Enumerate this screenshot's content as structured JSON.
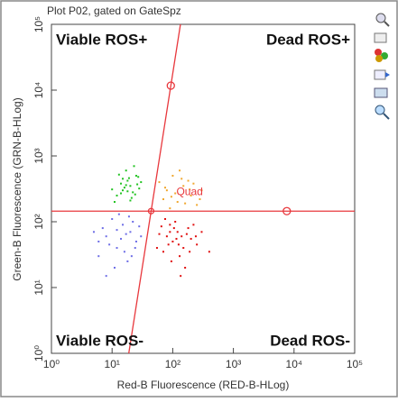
{
  "chart_data": {
    "type": "scatter",
    "title": "Plot P02, gated on GateSpz",
    "x_label": "Red-B Fluorescence (RED-B-HLog)",
    "y_label": "Green-B Fluorescence (GRN-B-HLog)",
    "log_x": true,
    "log_y": true,
    "xlim": [
      1,
      100000
    ],
    "ylim": [
      1,
      100000
    ],
    "xticks": [
      {
        "value": 1,
        "label": "10⁰"
      },
      {
        "value": 10,
        "label": "10¹"
      },
      {
        "value": 100,
        "label": "10²"
      },
      {
        "value": 1000,
        "label": "10³"
      },
      {
        "value": 10000,
        "label": "10⁴"
      },
      {
        "value": 100000,
        "label": "10⁵"
      }
    ],
    "yticks": [
      {
        "value": 1,
        "label": "10⁰"
      },
      {
        "value": 10,
        "label": "10¹"
      },
      {
        "value": 100,
        "label": "10²"
      },
      {
        "value": 1000,
        "label": "10³"
      },
      {
        "value": 10000,
        "label": "10⁴"
      },
      {
        "value": 100000,
        "label": "10⁵"
      }
    ],
    "quadrant_labels": [
      "Viable ROS+",
      "Dead ROS+",
      "Viable ROS-",
      "Dead ROS-"
    ],
    "gate": {
      "name": "Quad",
      "color": "#e8383d",
      "center": {
        "x": 44,
        "y": 145
      },
      "handles": [
        {
          "x": 7600,
          "y": 145
        },
        {
          "x": 93,
          "y": 11700
        }
      ]
    },
    "series": [
      {
        "color": "#22c322",
        "x": [
          15,
          18,
          12,
          20,
          25,
          14,
          22,
          17,
          28,
          11,
          19,
          24,
          16,
          30,
          13,
          21,
          26,
          18,
          15,
          23,
          10,
          20,
          27,
          17,
          14
        ],
        "values": [
          300,
          420,
          250,
          350,
          500,
          380,
          280,
          600,
          320,
          200,
          460,
          260,
          330,
          400,
          520,
          230,
          370,
          290,
          450,
          700,
          310,
          210,
          480,
          360,
          270
        ]
      },
      {
        "color": "#f0a830",
        "x": [
          80,
          120,
          60,
          150,
          200,
          100,
          250,
          70,
          180,
          300,
          90,
          130,
          220,
          110,
          160,
          75,
          280,
          140,
          95,
          190
        ],
        "values": [
          300,
          200,
          400,
          350,
          250,
          500,
          180,
          220,
          420,
          300,
          160,
          600,
          380,
          270,
          190,
          330,
          220,
          450,
          240,
          310
        ]
      },
      {
        "color": "#6e6ee6",
        "x": [
          8,
          12,
          15,
          6,
          20,
          10,
          25,
          7,
          18,
          13,
          30,
          9,
          16,
          22,
          5,
          11,
          14,
          28,
          19,
          8,
          24,
          12,
          17,
          6,
          21
        ],
        "values": [
          60,
          40,
          90,
          30,
          70,
          110,
          50,
          80,
          25,
          130,
          60,
          45,
          35,
          100,
          70,
          20,
          55,
          85,
          120,
          15,
          40,
          75,
          65,
          50,
          30
        ]
      },
      {
        "color": "#e01010",
        "x": [
          80,
          100,
          120,
          150,
          90,
          200,
          70,
          110,
          130,
          60,
          180,
          250,
          95,
          140,
          300,
          75,
          160,
          220,
          85,
          115,
          170,
          55,
          400,
          105,
          135,
          190,
          65,
          125,
          240,
          90
        ],
        "values": [
          60,
          50,
          70,
          40,
          90,
          55,
          35,
          100,
          30,
          65,
          80,
          45,
          25,
          60,
          70,
          110,
          20,
          90,
          45,
          55,
          65,
          40,
          35,
          80,
          15,
          35,
          85,
          45,
          60,
          70
        ]
      }
    ]
  }
}
